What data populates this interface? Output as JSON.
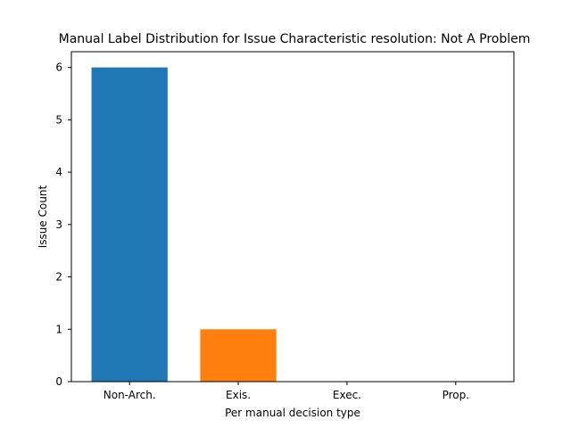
{
  "chart_data": {
    "type": "bar",
    "title": "Manual Label Distribution for Issue Characteristic resolution: Not A Problem",
    "xlabel": "Per manual decision type",
    "ylabel": "Issue Count",
    "categories": [
      "Non-Arch.",
      "Exis.",
      "Exec.",
      "Prop."
    ],
    "values": [
      6,
      1,
      0,
      0
    ],
    "colors": [
      "#1f77b4",
      "#ff7f0e",
      "#2ca02c",
      "#d62728"
    ],
    "ylim": [
      0,
      6.3
    ],
    "yticks": [
      0,
      1,
      2,
      3,
      4,
      5,
      6
    ],
    "grid": false,
    "legend": "none"
  }
}
